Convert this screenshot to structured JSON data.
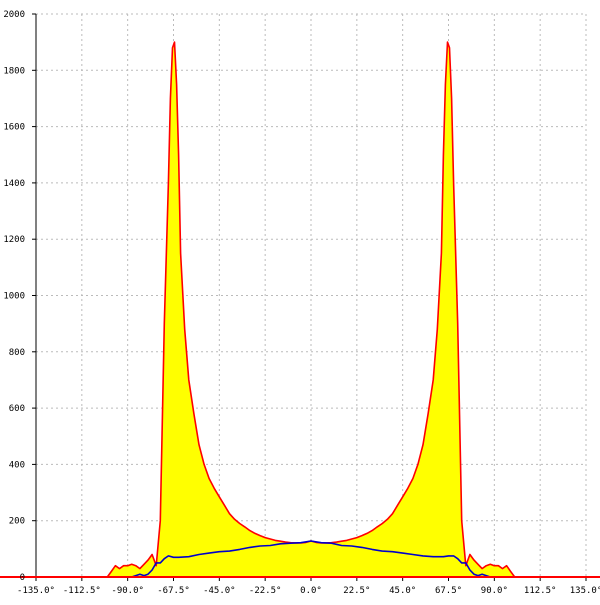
{
  "chart_data": {
    "type": "area",
    "title": "",
    "xlabel": "",
    "ylabel": "",
    "xlim": [
      -135,
      135
    ],
    "ylim": [
      0,
      2000
    ],
    "grid": true,
    "x_ticks": [
      -135.0,
      -112.5,
      -90.0,
      -67.5,
      -45.0,
      -22.5,
      0.0,
      22.5,
      45.0,
      67.5,
      90.0,
      112.5,
      135.0
    ],
    "x_tick_labels": [
      "-135.0°",
      "-112.5°",
      "-90.0°",
      "-67.5°",
      "-45.0°",
      "-22.5°",
      "0.0°",
      "22.5°",
      "45.0°",
      "67.5°",
      "90.0°",
      "112.5°",
      "135.0°"
    ],
    "y_ticks": [
      0,
      200,
      400,
      600,
      800,
      1000,
      1200,
      1400,
      1600,
      1800,
      2000
    ],
    "y_tick_labels": [
      "0",
      "200",
      "400",
      "600",
      "800",
      "1000",
      "1200",
      "1400",
      "1600",
      "1800",
      "2000"
    ],
    "series": [
      {
        "color": "#ff0000",
        "fill": "#ffff00",
        "x": [
          -100,
          -98,
          -96,
          -94,
          -92,
          -90,
          -88,
          -86,
          -84,
          -82,
          -80,
          -78,
          -76,
          -74,
          -72,
          -70,
          -69,
          -68,
          -67,
          -66,
          -65,
          -64,
          -62,
          -60,
          -57.5,
          -55,
          -52.5,
          -50,
          -47.5,
          -45,
          -42.5,
          -40,
          -37.5,
          -35,
          -32.5,
          -30,
          -27.5,
          -25,
          -22.5,
          -20,
          -17.5,
          -15,
          -12.5,
          -10,
          -7.5,
          -5,
          -2.5,
          0,
          2.5,
          5,
          7.5,
          10,
          12.5,
          15,
          17.5,
          20,
          22.5,
          25,
          27.5,
          30,
          32.5,
          35,
          37.5,
          40,
          42.5,
          45,
          47.5,
          50,
          52.5,
          55,
          57.5,
          60,
          62,
          64,
          65,
          66,
          67,
          68,
          69,
          70,
          72,
          74,
          76,
          78,
          80,
          82,
          84,
          86,
          88,
          90,
          92,
          94,
          96,
          98,
          100
        ],
        "y": [
          0,
          20,
          40,
          30,
          40,
          40,
          45,
          40,
          30,
          45,
          60,
          80,
          40,
          200,
          900,
          1400,
          1700,
          1880,
          1900,
          1750,
          1500,
          1150,
          880,
          700,
          580,
          470,
          400,
          350,
          315,
          285,
          255,
          225,
          205,
          190,
          178,
          165,
          155,
          147,
          140,
          135,
          130,
          127,
          124,
          122,
          121,
          121,
          123,
          128,
          123,
          121,
          121,
          122,
          124,
          127,
          130,
          135,
          140,
          147,
          155,
          165,
          178,
          190,
          205,
          225,
          255,
          285,
          315,
          350,
          400,
          470,
          580,
          700,
          880,
          1150,
          1500,
          1750,
          1900,
          1880,
          1700,
          1400,
          900,
          200,
          40,
          80,
          60,
          45,
          30,
          40,
          45,
          40,
          40,
          30,
          40,
          20,
          0
        ]
      },
      {
        "color": "#0000cc",
        "x": [
          -92,
          -88,
          -86,
          -84,
          -82,
          -80,
          -78,
          -76,
          -74,
          -72,
          -70,
          -67.5,
          -65,
          -60,
          -55,
          -50,
          -45,
          -40,
          -35,
          -30,
          -25,
          -20,
          -15,
          -10,
          -5,
          0,
          5,
          10,
          15,
          20,
          25,
          30,
          35,
          40,
          45,
          50,
          55,
          60,
          65,
          67.5,
          70,
          72,
          74,
          76,
          78,
          80,
          82,
          84,
          86,
          88,
          92
        ],
        "y": [
          0,
          0,
          5,
          10,
          5,
          10,
          25,
          50,
          50,
          65,
          75,
          70,
          70,
          72,
          80,
          85,
          90,
          92,
          98,
          105,
          110,
          112,
          118,
          120,
          122,
          128,
          122,
          120,
          112,
          110,
          105,
          98,
          92,
          90,
          85,
          80,
          75,
          72,
          72,
          75,
          75,
          65,
          50,
          50,
          25,
          10,
          5,
          10,
          5,
          0,
          0
        ]
      }
    ]
  }
}
